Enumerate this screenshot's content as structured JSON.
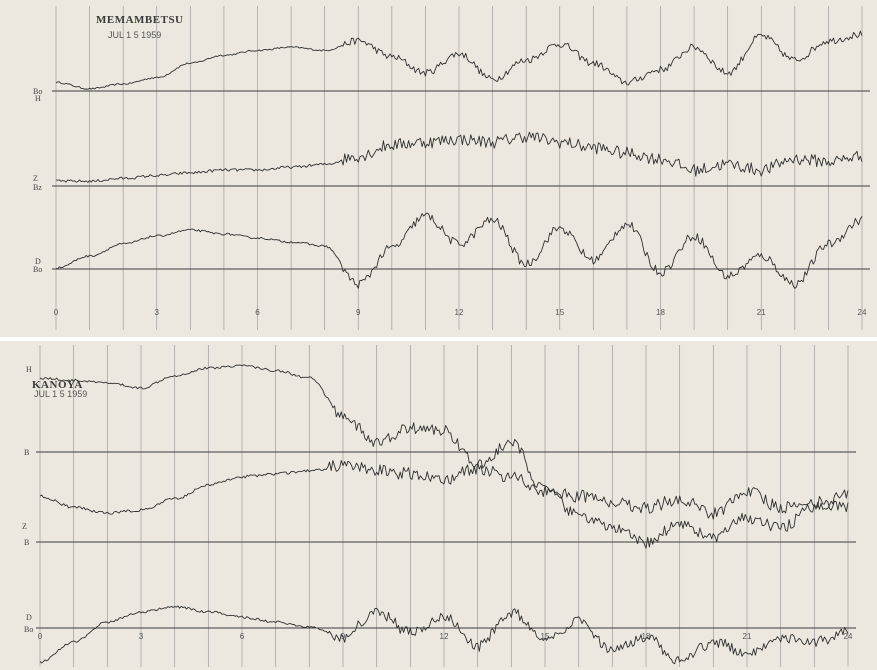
{
  "chart_data": [
    {
      "type": "line",
      "station": "MEMAMBETSU",
      "date": "JUL 1 5 1959",
      "x_tick_labels": [
        "0",
        "3",
        "6",
        "9",
        "12",
        "15",
        "18",
        "21",
        "24"
      ],
      "xlim": [
        0,
        24
      ],
      "trace_labels": [
        "Bo",
        "H",
        "Z",
        "Bz",
        "D",
        "Bo"
      ],
      "grid": true,
      "series": [
        {
          "name": "H",
          "values": [
            0.6,
            0.2,
            0.5,
            0.9,
            1.8,
            2.3,
            2.6,
            2.8,
            2.6,
            3.2,
            2.2,
            1.2,
            2.4,
            0.8,
            2.0,
            3.0,
            1.8,
            0.6,
            1.4,
            2.8,
            1.2,
            3.5,
            2.0,
            3.2,
            3.6
          ]
        },
        {
          "name": "Z",
          "values": [
            0.1,
            0.1,
            0.2,
            0.3,
            0.4,
            0.5,
            0.5,
            0.6,
            0.7,
            1.0,
            1.4,
            1.5,
            1.6,
            1.5,
            1.7,
            1.5,
            1.3,
            1.1,
            0.9,
            0.5,
            0.7,
            0.5,
            0.9,
            0.8,
            1.0
          ]
        },
        {
          "name": "D",
          "values": [
            0.0,
            0.6,
            1.2,
            1.6,
            1.9,
            1.7,
            1.5,
            1.3,
            1.1,
            -0.8,
            1.0,
            2.6,
            1.2,
            2.4,
            0.2,
            2.0,
            0.4,
            2.2,
            -0.2,
            1.6,
            -0.4,
            0.6,
            -0.8,
            1.2,
            2.4
          ]
        }
      ]
    },
    {
      "type": "line",
      "station": "KANOYA",
      "date": "JUL 1 5 1959",
      "x_tick_labels": [
        "0",
        "3",
        "6",
        "9",
        "12",
        "15",
        "18",
        "21",
        "24"
      ],
      "xlim": [
        0,
        24
      ],
      "trace_labels": [
        "H",
        "B",
        "Z",
        "B",
        "D",
        "Bo"
      ],
      "grid": true,
      "series": [
        {
          "name": "H",
          "values": [
            3.0,
            2.9,
            2.8,
            2.6,
            3.1,
            3.4,
            3.5,
            3.3,
            3.0,
            1.5,
            0.4,
            1.0,
            0.9,
            -0.5,
            0.4,
            -1.5,
            -2.5,
            -3.0,
            -3.6,
            -2.8,
            -3.4,
            -2.6,
            -3.0,
            -2.2,
            -1.6
          ]
        },
        {
          "name": "Z",
          "values": [
            1.6,
            1.2,
            1.0,
            1.1,
            1.5,
            2.0,
            2.3,
            2.4,
            2.5,
            2.7,
            2.5,
            2.4,
            2.2,
            2.6,
            2.3,
            1.8,
            1.6,
            1.4,
            1.2,
            1.5,
            1.0,
            1.8,
            1.2,
            1.4,
            1.2
          ]
        },
        {
          "name": "D",
          "values": [
            -1.4,
            -0.6,
            0.2,
            0.6,
            0.8,
            0.6,
            0.4,
            0.2,
            0.0,
            -0.4,
            0.6,
            -0.2,
            0.4,
            -0.8,
            0.6,
            -0.6,
            0.2,
            -1.0,
            -0.4,
            -1.4,
            -0.6,
            -1.0,
            -0.4,
            -0.6,
            -0.2
          ]
        }
      ]
    }
  ]
}
